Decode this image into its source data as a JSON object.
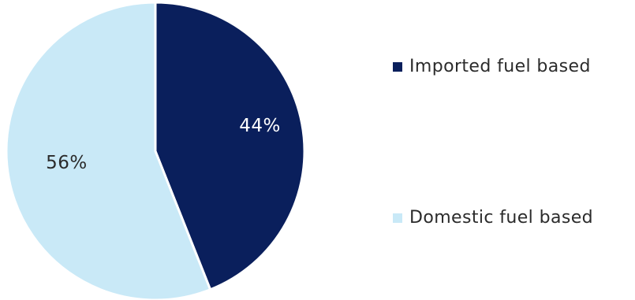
{
  "chart_data": {
    "type": "pie",
    "title": "",
    "slices": [
      {
        "label": "Imported fuel based",
        "value": 44,
        "display": "44%",
        "color": "#0a1f5c",
        "label_color": "#ffffff"
      },
      {
        "label": "Domestic fuel based",
        "value": 56,
        "display": "56%",
        "color": "#c9e9f7",
        "label_color": "#2b2b2b"
      }
    ],
    "legend_position": "right"
  }
}
